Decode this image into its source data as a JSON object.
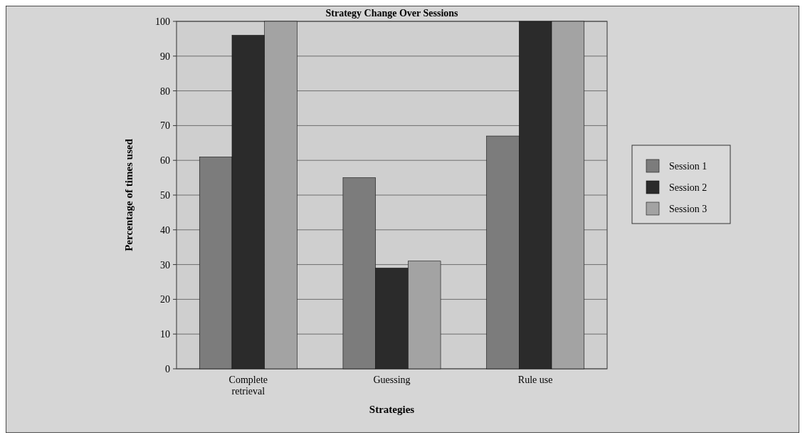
{
  "chart_data": {
    "type": "bar",
    "title": "Strategy Change Over Sessions",
    "xlabel": "Strategies",
    "ylabel": "Percentage of times used",
    "categories": [
      "Complete retrieval",
      "Guessing",
      "Rule use"
    ],
    "series": [
      {
        "name": "Session 1",
        "color": "#7c7c7c",
        "values": [
          61,
          55,
          67
        ]
      },
      {
        "name": "Session 2",
        "color": "#2b2b2b",
        "values": [
          96,
          29,
          100
        ]
      },
      {
        "name": "Session 3",
        "color": "#a3a3a3",
        "values": [
          100,
          31,
          100
        ]
      }
    ],
    "ylim": [
      0,
      100
    ],
    "yticks": [
      0,
      10,
      20,
      30,
      40,
      50,
      60,
      70,
      80,
      90,
      100
    ],
    "grid": "y",
    "legend": "right"
  }
}
